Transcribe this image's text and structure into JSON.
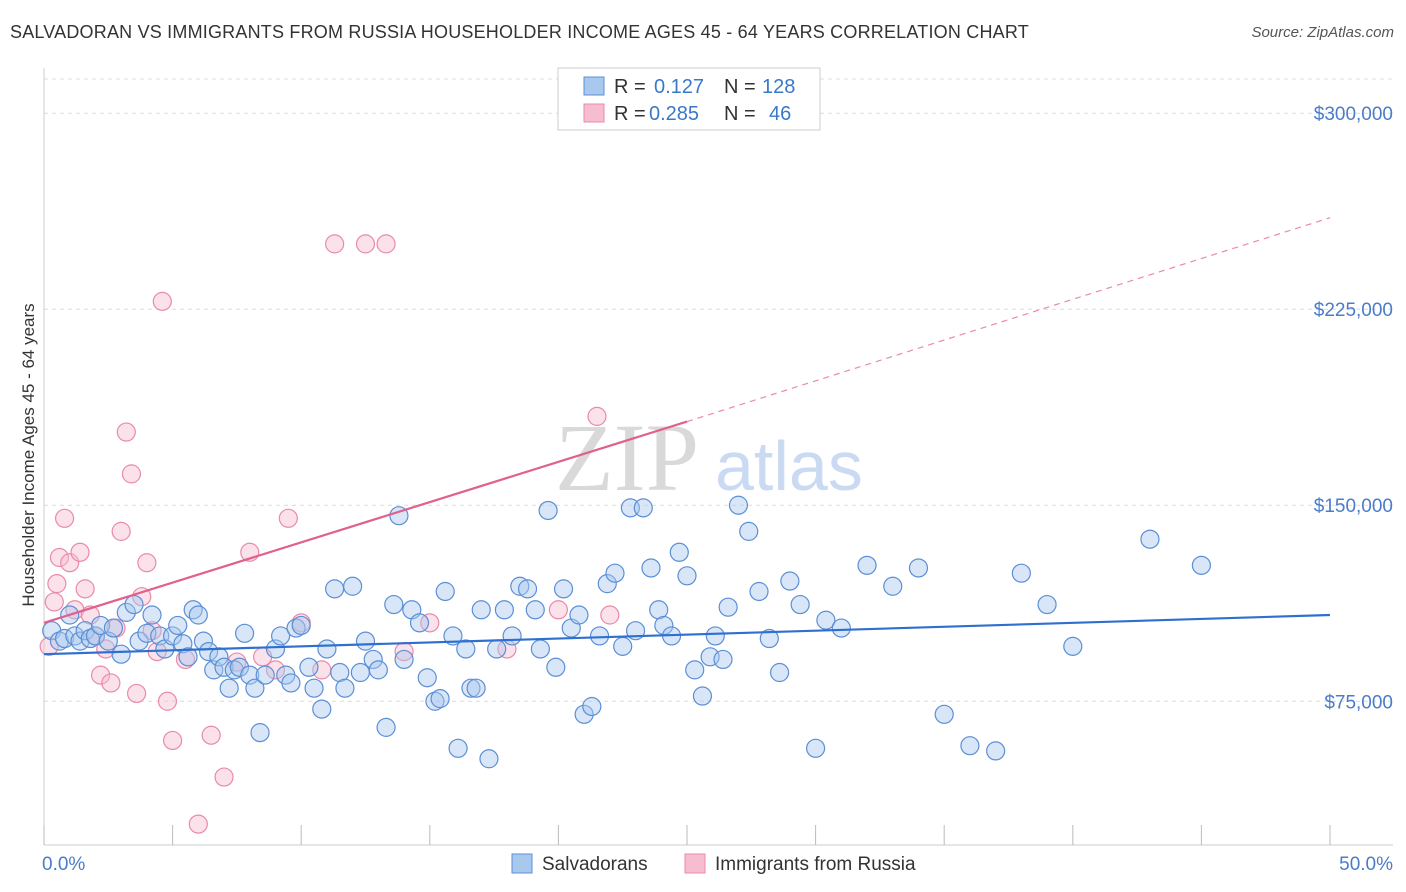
{
  "title": "SALVADORAN VS IMMIGRANTS FROM RUSSIA HOUSEHOLDER INCOME AGES 45 - 64 YEARS CORRELATION CHART",
  "source": "Source: ZipAtlas.com",
  "watermark": {
    "zip": "ZIP",
    "atlas": "atlas"
  },
  "legend": {
    "r_label": "R =",
    "n_label": "N =",
    "rows": [
      {
        "r": "0.127",
        "n": "128"
      },
      {
        "r": "0.285",
        "n": "46"
      }
    ]
  },
  "colors": {
    "blue_fill": "#a9c8ee",
    "blue_stroke": "#5b8fd6",
    "blue_line": "#2f6fcf",
    "pink_fill": "#f6bdd0",
    "pink_stroke": "#e98aab",
    "pink_line": "#e0608e",
    "grid": "#dcdcdc",
    "axis_text": "#4a7cc9"
  },
  "chart_data": {
    "type": "scatter",
    "title": "SALVADORAN VS IMMIGRANTS FROM RUSSIA HOUSEHOLDER INCOME AGES 45 - 64 YEARS CORRELATION CHART",
    "xlabel": "",
    "ylabel": "Householder Income Ages 45 - 64 years",
    "xlim": [
      0,
      50
    ],
    "ylim": [
      20000,
      315000
    ],
    "x_tick_labels": {
      "left": "0.0%",
      "right": "50.0%"
    },
    "y_ticks": [
      {
        "value": 75000,
        "label": "$75,000"
      },
      {
        "value": 150000,
        "label": "$150,000"
      },
      {
        "value": 225000,
        "label": "$225,000"
      },
      {
        "value": 300000,
        "label": "$300,000"
      }
    ],
    "series": [
      {
        "name": "Salvadorans",
        "color": "#5b8fd6",
        "trend": {
          "x0": 0,
          "y0": 93000,
          "x1": 50,
          "y1": 108000,
          "dashed_to": null
        },
        "points": [
          [
            0.3,
            102000
          ],
          [
            0.6,
            98000
          ],
          [
            0.8,
            99000
          ],
          [
            1.0,
            108000
          ],
          [
            1.2,
            100000
          ],
          [
            1.4,
            98000
          ],
          [
            1.6,
            102000
          ],
          [
            1.8,
            99000
          ],
          [
            2.0,
            100000
          ],
          [
            2.2,
            104000
          ],
          [
            2.5,
            98000
          ],
          [
            2.7,
            103000
          ],
          [
            3.0,
            93000
          ],
          [
            3.2,
            109000
          ],
          [
            3.5,
            112000
          ],
          [
            3.7,
            98000
          ],
          [
            4.0,
            101000
          ],
          [
            4.2,
            108000
          ],
          [
            4.5,
            100000
          ],
          [
            4.7,
            95000
          ],
          [
            5.0,
            100000
          ],
          [
            5.2,
            104000
          ],
          [
            5.4,
            97000
          ],
          [
            5.6,
            92000
          ],
          [
            5.8,
            110000
          ],
          [
            6.0,
            108000
          ],
          [
            6.2,
            98000
          ],
          [
            6.4,
            94000
          ],
          [
            6.6,
            87000
          ],
          [
            6.8,
            92000
          ],
          [
            7.0,
            88000
          ],
          [
            7.2,
            80000
          ],
          [
            7.4,
            87000
          ],
          [
            7.6,
            88000
          ],
          [
            7.8,
            101000
          ],
          [
            8.0,
            85000
          ],
          [
            8.2,
            80000
          ],
          [
            8.4,
            63000
          ],
          [
            8.6,
            85000
          ],
          [
            9.0,
            95000
          ],
          [
            9.2,
            100000
          ],
          [
            9.4,
            85000
          ],
          [
            9.6,
            82000
          ],
          [
            9.8,
            103000
          ],
          [
            10.0,
            104000
          ],
          [
            10.3,
            88000
          ],
          [
            10.5,
            80000
          ],
          [
            10.8,
            72000
          ],
          [
            11.0,
            95000
          ],
          [
            11.3,
            118000
          ],
          [
            11.5,
            86000
          ],
          [
            11.7,
            80000
          ],
          [
            12.0,
            119000
          ],
          [
            12.3,
            86000
          ],
          [
            12.5,
            98000
          ],
          [
            12.8,
            91000
          ],
          [
            13.0,
            87000
          ],
          [
            13.3,
            65000
          ],
          [
            13.6,
            112000
          ],
          [
            13.8,
            146000
          ],
          [
            14.0,
            91000
          ],
          [
            14.3,
            110000
          ],
          [
            14.6,
            105000
          ],
          [
            14.9,
            84000
          ],
          [
            15.2,
            75000
          ],
          [
            15.4,
            76000
          ],
          [
            15.6,
            117000
          ],
          [
            15.9,
            100000
          ],
          [
            16.1,
            57000
          ],
          [
            16.4,
            95000
          ],
          [
            16.6,
            80000
          ],
          [
            16.8,
            80000
          ],
          [
            17.0,
            110000
          ],
          [
            17.3,
            53000
          ],
          [
            17.6,
            95000
          ],
          [
            17.9,
            110000
          ],
          [
            18.2,
            100000
          ],
          [
            18.5,
            119000
          ],
          [
            18.8,
            118000
          ],
          [
            19.1,
            110000
          ],
          [
            19.3,
            95000
          ],
          [
            19.6,
            148000
          ],
          [
            19.9,
            88000
          ],
          [
            20.2,
            118000
          ],
          [
            20.5,
            103000
          ],
          [
            20.8,
            108000
          ],
          [
            21.0,
            70000
          ],
          [
            21.3,
            73000
          ],
          [
            21.6,
            100000
          ],
          [
            21.9,
            120000
          ],
          [
            22.2,
            124000
          ],
          [
            22.5,
            96000
          ],
          [
            22.8,
            149000
          ],
          [
            23.0,
            102000
          ],
          [
            23.3,
            149000
          ],
          [
            23.6,
            126000
          ],
          [
            23.9,
            110000
          ],
          [
            24.1,
            104000
          ],
          [
            24.4,
            100000
          ],
          [
            24.7,
            132000
          ],
          [
            25.0,
            123000
          ],
          [
            25.3,
            87000
          ],
          [
            25.6,
            77000
          ],
          [
            25.9,
            92000
          ],
          [
            26.1,
            100000
          ],
          [
            26.4,
            91000
          ],
          [
            26.6,
            111000
          ],
          [
            27.0,
            150000
          ],
          [
            27.4,
            140000
          ],
          [
            27.8,
            117000
          ],
          [
            28.2,
            99000
          ],
          [
            28.6,
            86000
          ],
          [
            29.0,
            121000
          ],
          [
            29.4,
            112000
          ],
          [
            30.0,
            57000
          ],
          [
            30.4,
            106000
          ],
          [
            31.0,
            103000
          ],
          [
            32.0,
            127000
          ],
          [
            33.0,
            119000
          ],
          [
            34.0,
            126000
          ],
          [
            35.0,
            70000
          ],
          [
            36.0,
            58000
          ],
          [
            37.0,
            56000
          ],
          [
            38.0,
            124000
          ],
          [
            39.0,
            112000
          ],
          [
            40.0,
            96000
          ],
          [
            43.0,
            137000
          ],
          [
            45.0,
            127000
          ]
        ]
      },
      {
        "name": "Immigrants from Russia",
        "color": "#e98aab",
        "trend": {
          "x0": 0,
          "y0": 105000,
          "x1": 25,
          "y1": 182000,
          "dashed_to": {
            "x": 50,
            "y": 260000
          }
        },
        "points": [
          [
            0.2,
            96000
          ],
          [
            0.4,
            113000
          ],
          [
            0.5,
            120000
          ],
          [
            0.6,
            130000
          ],
          [
            0.8,
            145000
          ],
          [
            1.0,
            128000
          ],
          [
            1.2,
            110000
          ],
          [
            1.4,
            132000
          ],
          [
            1.6,
            118000
          ],
          [
            1.8,
            108000
          ],
          [
            2.0,
            100000
          ],
          [
            2.2,
            85000
          ],
          [
            2.4,
            95000
          ],
          [
            2.6,
            82000
          ],
          [
            2.8,
            103000
          ],
          [
            3.0,
            140000
          ],
          [
            3.2,
            178000
          ],
          [
            3.4,
            162000
          ],
          [
            3.6,
            78000
          ],
          [
            3.8,
            115000
          ],
          [
            4.0,
            128000
          ],
          [
            4.2,
            102000
          ],
          [
            4.4,
            94000
          ],
          [
            4.6,
            228000
          ],
          [
            4.8,
            75000
          ],
          [
            5.0,
            60000
          ],
          [
            5.5,
            91000
          ],
          [
            6.0,
            28000
          ],
          [
            6.5,
            62000
          ],
          [
            7.0,
            46000
          ],
          [
            7.5,
            90000
          ],
          [
            8.0,
            132000
          ],
          [
            8.5,
            92000
          ],
          [
            9.0,
            87000
          ],
          [
            9.5,
            145000
          ],
          [
            10.0,
            105000
          ],
          [
            10.8,
            87000
          ],
          [
            11.3,
            250000
          ],
          [
            12.5,
            250000
          ],
          [
            13.3,
            250000
          ],
          [
            14.0,
            94000
          ],
          [
            15.0,
            105000
          ],
          [
            18.0,
            95000
          ],
          [
            20.0,
            110000
          ],
          [
            21.5,
            184000
          ],
          [
            22.0,
            108000
          ]
        ]
      }
    ]
  },
  "bottom_legend": [
    {
      "label": "Salvadorans"
    },
    {
      "label": "Immigrants from Russia"
    }
  ]
}
